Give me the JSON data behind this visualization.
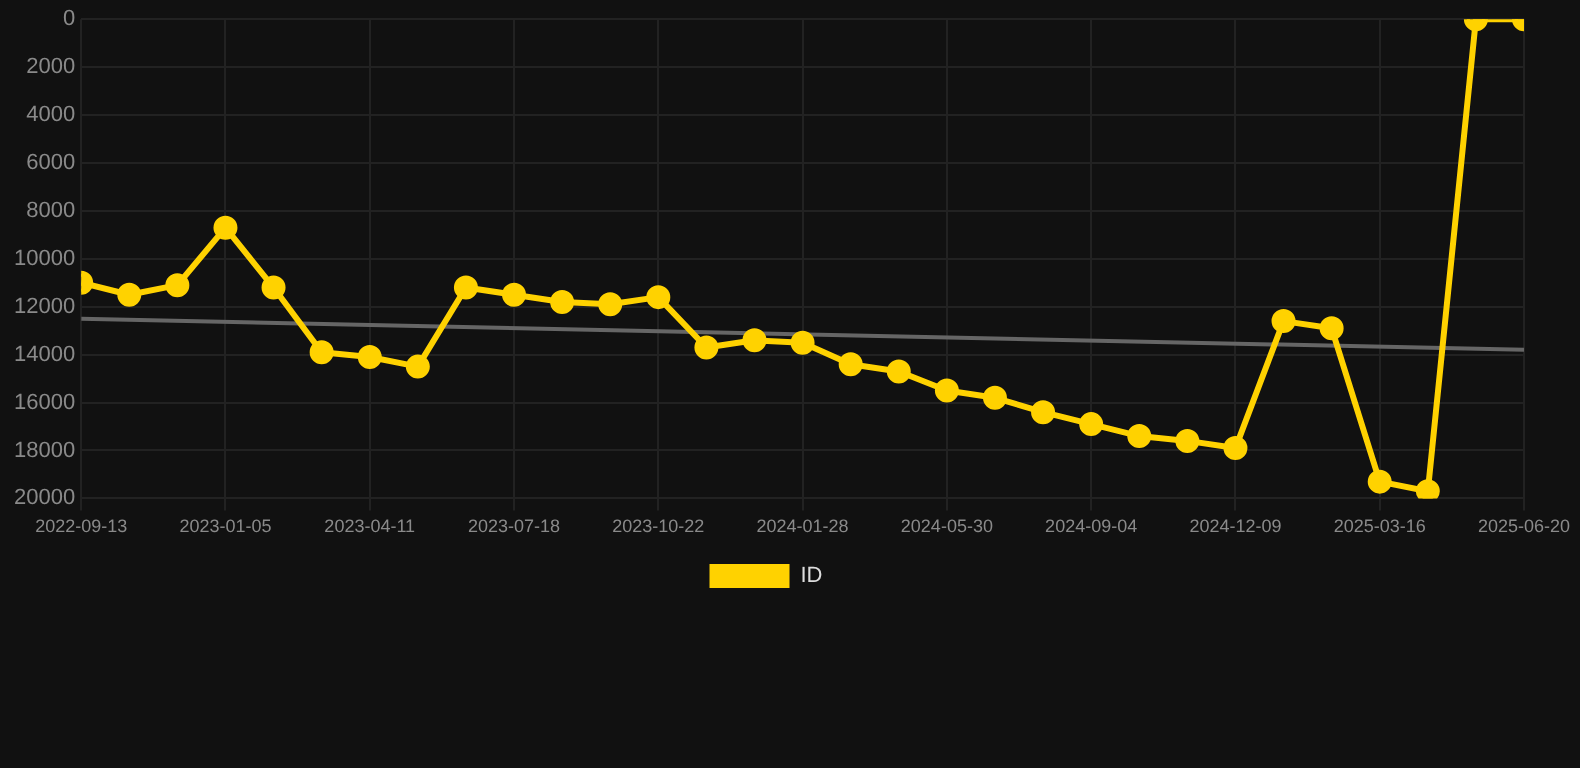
{
  "chart_data": {
    "type": "line",
    "categories": [
      "2022-09-13",
      null,
      null,
      "2023-01-05",
      null,
      null,
      "2023-04-11",
      null,
      null,
      "2023-07-18",
      null,
      null,
      "2023-10-22",
      null,
      null,
      "2024-01-28",
      null,
      null,
      "2024-05-30",
      null,
      null,
      "2024-09-04",
      null,
      null,
      "2024-12-09",
      null,
      null,
      "2025-03-16",
      null,
      null,
      "2025-06-20"
    ],
    "series": [
      {
        "name": "ID",
        "color": "#ffd200",
        "marker": "circle",
        "values": [
          11000,
          11500,
          11100,
          8700,
          11200,
          13900,
          14100,
          14500,
          11200,
          11500,
          11800,
          11900,
          11600,
          13700,
          13400,
          13500,
          14400,
          14700,
          15500,
          15800,
          16400,
          16900,
          17400,
          17600,
          17900,
          12600,
          12900,
          19300,
          19700,
          0,
          0
        ]
      },
      {
        "type": "line",
        "color": "#666666",
        "marker": "none",
        "values": [
          12500,
          null,
          null,
          null,
          null,
          null,
          null,
          null,
          null,
          null,
          null,
          null,
          null,
          null,
          null,
          null,
          null,
          null,
          null,
          null,
          null,
          null,
          null,
          null,
          null,
          null,
          null,
          null,
          null,
          null,
          13800
        ]
      }
    ],
    "ylim": [
      20000,
      0
    ],
    "yticks": [
      0,
      2000,
      4000,
      6000,
      8000,
      10000,
      12000,
      14000,
      16000,
      18000,
      20000
    ],
    "grid": true,
    "legend": "bottom"
  }
}
